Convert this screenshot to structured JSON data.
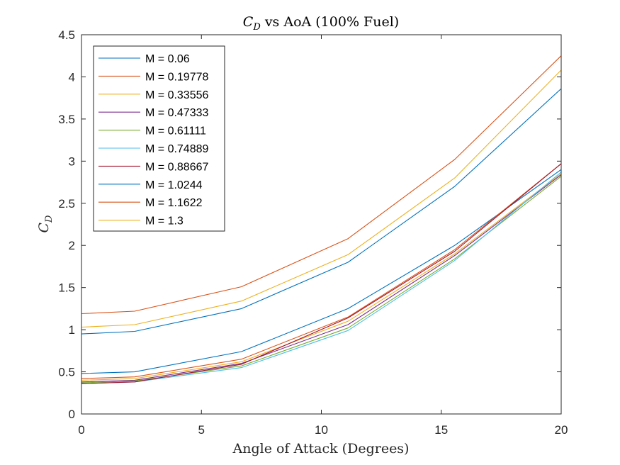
{
  "chart_data": {
    "type": "line",
    "title_main": "C",
    "title_sub": "D",
    "title_rest": " vs AoA (100% Fuel)",
    "xlabel": "Angle of Attack (Degrees)",
    "ylabel_main": "C",
    "ylabel_sub": "D",
    "xlim": [
      0,
      20
    ],
    "ylim": [
      0,
      4.5
    ],
    "xticks": [
      0,
      5,
      10,
      15,
      20
    ],
    "yticks": [
      0,
      0.5,
      1,
      1.5,
      2,
      2.5,
      3,
      3.5,
      4,
      4.5
    ],
    "xtick_labels": [
      "0",
      "5",
      "10",
      "15",
      "20"
    ],
    "ytick_labels": [
      "0",
      "0.5",
      "1",
      "1.5",
      "2",
      "2.5",
      "3",
      "3.5",
      "4",
      "4.5"
    ],
    "grid": false,
    "legend_position": "top-left",
    "x": [
      0,
      2.22,
      6.67,
      11.11,
      15.56,
      20
    ],
    "series": [
      {
        "name": "M = 0.06",
        "color": "#0072BD",
        "values": [
          0.48,
          0.5,
          0.74,
          1.25,
          2.0,
          2.9
        ]
      },
      {
        "name": "M = 0.19778",
        "color": "#D95319",
        "values": [
          0.42,
          0.44,
          0.65,
          1.15,
          1.95,
          2.97
        ]
      },
      {
        "name": "M = 0.33556",
        "color": "#EDB120",
        "values": [
          0.4,
          0.42,
          0.62,
          1.1,
          1.9,
          2.85
        ]
      },
      {
        "name": "M = 0.47333",
        "color": "#7E2F8E",
        "values": [
          0.38,
          0.4,
          0.6,
          1.06,
          1.88,
          2.84
        ]
      },
      {
        "name": "M = 0.61111",
        "color": "#77AC30",
        "values": [
          0.37,
          0.39,
          0.57,
          1.02,
          1.84,
          2.82
        ]
      },
      {
        "name": "M = 0.74889",
        "color": "#4DBEEE",
        "values": [
          0.36,
          0.38,
          0.55,
          0.99,
          1.82,
          2.87
        ]
      },
      {
        "name": "M = 0.88667",
        "color": "#A2142F",
        "values": [
          0.36,
          0.38,
          0.59,
          1.14,
          1.93,
          2.97
        ]
      },
      {
        "name": "M = 1.0244",
        "color": "#0072BD",
        "values": [
          0.95,
          0.98,
          1.25,
          1.8,
          2.7,
          3.86
        ]
      },
      {
        "name": "M = 1.1622",
        "color": "#D95319",
        "values": [
          1.19,
          1.22,
          1.51,
          2.08,
          3.02,
          4.25
        ]
      },
      {
        "name": "M = 1.3",
        "color": "#EDB120",
        "values": [
          1.03,
          1.06,
          1.34,
          1.89,
          2.8,
          4.08
        ]
      }
    ]
  }
}
